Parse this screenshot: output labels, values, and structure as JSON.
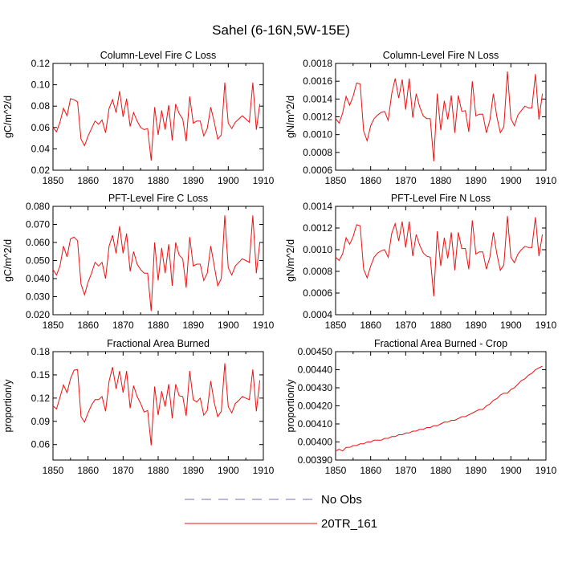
{
  "figure_title": "Sahel (6-16N,5W-15E)",
  "legend": [
    {
      "label": "No Obs",
      "color": "#7b6fb0",
      "style": "dashed"
    },
    {
      "label": "20TR_161",
      "color": "#ee1111",
      "style": "solid"
    }
  ],
  "chart_data": [
    {
      "type": "line",
      "title": "Column-Level Fire C Loss",
      "ylabel": "gC/m^2/d",
      "xlim": [
        1850,
        1910
      ],
      "ylim": [
        0.02,
        0.12
      ],
      "xticks": [
        1850,
        1860,
        1870,
        1880,
        1890,
        1900,
        1910
      ],
      "xticklabels": [
        "1850",
        "1860",
        "1870",
        "1880",
        "1890",
        "1900",
        "1910"
      ],
      "yticks": [
        0.02,
        0.04,
        0.06,
        0.08,
        0.1,
        0.12
      ],
      "yticklabels": [
        "0.02",
        "0.04",
        "0.06",
        "0.08",
        "0.10",
        "0.12"
      ],
      "series": [
        {
          "name": "20TR_161",
          "x_start": 1850,
          "values": [
            0.06,
            0.056,
            0.065,
            0.078,
            0.071,
            0.087,
            0.086,
            0.084,
            0.049,
            0.043,
            0.052,
            0.059,
            0.066,
            0.063,
            0.067,
            0.055,
            0.078,
            0.086,
            0.074,
            0.094,
            0.07,
            0.087,
            0.061,
            0.074,
            0.066,
            0.06,
            0.058,
            0.059,
            0.029,
            0.079,
            0.053,
            0.076,
            0.058,
            0.081,
            0.048,
            0.082,
            0.073,
            0.068,
            0.047,
            0.089,
            0.064,
            0.066,
            0.066,
            0.052,
            0.059,
            0.079,
            0.065,
            0.049,
            0.053,
            0.102,
            0.064,
            0.059,
            0.065,
            0.068,
            0.071,
            0.068,
            0.065,
            0.102,
            0.058,
            0.082
          ]
        }
      ]
    },
    {
      "type": "line",
      "title": "Column-Level Fire N Loss",
      "ylabel": "gN/m^2/d",
      "xlim": [
        1850,
        1910
      ],
      "ylim": [
        0.0006,
        0.0018
      ],
      "xticks": [
        1850,
        1860,
        1870,
        1880,
        1890,
        1900,
        1910
      ],
      "xticklabels": [
        "1850",
        "1860",
        "1870",
        "1880",
        "1890",
        "1900",
        "1910"
      ],
      "yticks": [
        0.0006,
        0.0008,
        0.001,
        0.0012,
        0.0014,
        0.0016,
        0.0018
      ],
      "yticklabels": [
        "0.0006",
        "0.0008",
        "0.0010",
        "0.0012",
        "0.0014",
        "0.0016",
        "0.0018"
      ],
      "series": [
        {
          "name": "20TR_161",
          "x_start": 1850,
          "values": [
            0.00118,
            0.00113,
            0.00124,
            0.00143,
            0.00133,
            0.00143,
            0.00158,
            0.00157,
            0.00104,
            0.00093,
            0.0011,
            0.00118,
            0.00122,
            0.00125,
            0.00126,
            0.00116,
            0.00146,
            0.00163,
            0.00141,
            0.00162,
            0.00128,
            0.00163,
            0.00119,
            0.00146,
            0.00131,
            0.00121,
            0.00118,
            0.00118,
            0.0007,
            0.00146,
            0.00105,
            0.00138,
            0.00117,
            0.00144,
            0.00102,
            0.00144,
            0.00126,
            0.00127,
            0.00103,
            0.0016,
            0.00121,
            0.00123,
            0.00123,
            0.00102,
            0.00116,
            0.00146,
            0.0012,
            0.00102,
            0.00109,
            0.00171,
            0.00118,
            0.0011,
            0.00122,
            0.00127,
            0.00132,
            0.0013,
            0.0013,
            0.00168,
            0.00117,
            0.00146
          ]
        }
      ]
    },
    {
      "type": "line",
      "title": "PFT-Level Fire C Loss",
      "ylabel": "gC/m^2/d",
      "xlim": [
        1850,
        1910
      ],
      "ylim": [
        0.02,
        0.08
      ],
      "xticks": [
        1850,
        1860,
        1870,
        1880,
        1890,
        1900,
        1910
      ],
      "xticklabels": [
        "1850",
        "1860",
        "1870",
        "1880",
        "1890",
        "1900",
        "1910"
      ],
      "yticks": [
        0.02,
        0.03,
        0.04,
        0.05,
        0.06,
        0.07,
        0.08
      ],
      "yticklabels": [
        "0.020",
        "0.030",
        "0.040",
        "0.050",
        "0.060",
        "0.070",
        "0.080"
      ],
      "series": [
        {
          "name": "20TR_161",
          "x_start": 1850,
          "values": [
            0.045,
            0.042,
            0.047,
            0.058,
            0.052,
            0.062,
            0.063,
            0.061,
            0.037,
            0.031,
            0.038,
            0.043,
            0.049,
            0.047,
            0.049,
            0.04,
            0.058,
            0.064,
            0.054,
            0.069,
            0.054,
            0.065,
            0.044,
            0.055,
            0.048,
            0.045,
            0.043,
            0.043,
            0.022,
            0.06,
            0.039,
            0.057,
            0.043,
            0.059,
            0.036,
            0.06,
            0.053,
            0.051,
            0.035,
            0.063,
            0.047,
            0.048,
            0.048,
            0.039,
            0.043,
            0.058,
            0.047,
            0.036,
            0.04,
            0.075,
            0.046,
            0.042,
            0.047,
            0.049,
            0.051,
            0.05,
            0.049,
            0.075,
            0.043,
            0.06
          ]
        }
      ]
    },
    {
      "type": "line",
      "title": "PFT-Level Fire N Loss",
      "ylabel": "gN/m^2/d",
      "xlim": [
        1850,
        1910
      ],
      "ylim": [
        0.0004,
        0.0014
      ],
      "xticks": [
        1850,
        1860,
        1870,
        1880,
        1890,
        1900,
        1910
      ],
      "xticklabels": [
        "1850",
        "1860",
        "1870",
        "1880",
        "1890",
        "1900",
        "1910"
      ],
      "yticks": [
        0.0004,
        0.0006,
        0.0008,
        0.001,
        0.0012,
        0.0014
      ],
      "yticklabels": [
        "0.0004",
        "0.0006",
        "0.0008",
        "0.0010",
        "0.0012",
        "0.0014"
      ],
      "series": [
        {
          "name": "20TR_161",
          "x_start": 1850,
          "values": [
            0.00093,
            0.0009,
            0.00096,
            0.00111,
            0.00105,
            0.00112,
            0.00123,
            0.00122,
            0.00082,
            0.00074,
            0.00085,
            0.00093,
            0.00097,
            0.00099,
            0.001,
            0.00093,
            0.00115,
            0.00124,
            0.00108,
            0.00126,
            0.00102,
            0.00126,
            0.00094,
            0.00114,
            0.00104,
            0.00097,
            0.00094,
            0.00093,
            0.00057,
            0.00117,
            0.00085,
            0.00111,
            0.00092,
            0.00116,
            0.00081,
            0.00116,
            0.00101,
            0.00101,
            0.00082,
            0.00127,
            0.00096,
            0.00098,
            0.00098,
            0.00082,
            0.00093,
            0.00116,
            0.00096,
            0.00081,
            0.00086,
            0.00131,
            0.00093,
            0.00088,
            0.00096,
            0.001,
            0.00103,
            0.00102,
            0.00102,
            0.0013,
            0.00094,
            0.00114
          ]
        }
      ]
    },
    {
      "type": "line",
      "title": "Fractional Area Burned",
      "ylabel": "proportion/y",
      "xlim": [
        1850,
        1910
      ],
      "ylim": [
        0.04,
        0.18
      ],
      "xticks": [
        1850,
        1860,
        1870,
        1880,
        1890,
        1900,
        1910
      ],
      "xticklabels": [
        "1850",
        "1860",
        "1870",
        "1880",
        "1890",
        "1900",
        "1910"
      ],
      "yticks": [
        0.06,
        0.09,
        0.12,
        0.15,
        0.18
      ],
      "yticklabels": [
        "0.06",
        "0.09",
        "0.12",
        "0.15",
        "0.18"
      ],
      "series": [
        {
          "name": "20TR_161",
          "x_start": 1850,
          "values": [
            0.11,
            0.106,
            0.121,
            0.137,
            0.127,
            0.145,
            0.156,
            0.157,
            0.096,
            0.089,
            0.101,
            0.111,
            0.118,
            0.118,
            0.122,
            0.103,
            0.142,
            0.16,
            0.132,
            0.155,
            0.127,
            0.155,
            0.107,
            0.136,
            0.122,
            0.113,
            0.102,
            0.104,
            0.059,
            0.135,
            0.098,
            0.129,
            0.109,
            0.138,
            0.094,
            0.138,
            0.123,
            0.122,
            0.097,
            0.155,
            0.118,
            0.115,
            0.12,
            0.098,
            0.104,
            0.142,
            0.114,
            0.096,
            0.103,
            0.165,
            0.109,
            0.101,
            0.113,
            0.117,
            0.122,
            0.12,
            0.118,
            0.157,
            0.103,
            0.143
          ]
        }
      ]
    },
    {
      "type": "line",
      "title": "Fractional Area Burned - Crop",
      "ylabel": "proportion/y",
      "xlim": [
        1850,
        1910
      ],
      "ylim": [
        0.0039,
        0.0045
      ],
      "xticks": [
        1850,
        1860,
        1870,
        1880,
        1890,
        1900,
        1910
      ],
      "xticklabels": [
        "1850",
        "1860",
        "1870",
        "1880",
        "1890",
        "1900",
        "1910"
      ],
      "yticks": [
        0.0039,
        0.004,
        0.0041,
        0.0042,
        0.0043,
        0.0044,
        0.0045
      ],
      "yticklabels": [
        "0.00390",
        "0.00400",
        "0.00410",
        "0.00420",
        "0.00430",
        "0.00440",
        "0.00450"
      ],
      "series": [
        {
          "name": "20TR_161",
          "x_start": 1850,
          "values": [
            0.00395,
            0.00396,
            0.00395,
            0.00397,
            0.00397,
            0.00398,
            0.00398,
            0.00399,
            0.00399,
            0.004,
            0.004,
            0.00401,
            0.00401,
            0.00401,
            0.00402,
            0.00402,
            0.00403,
            0.00403,
            0.00404,
            0.00404,
            0.00405,
            0.00405,
            0.00406,
            0.00406,
            0.00407,
            0.00407,
            0.00408,
            0.00408,
            0.00409,
            0.00409,
            0.0041,
            0.00411,
            0.00411,
            0.00412,
            0.00412,
            0.00413,
            0.00414,
            0.00414,
            0.00415,
            0.00416,
            0.00417,
            0.00418,
            0.00418,
            0.0042,
            0.00421,
            0.00423,
            0.00424,
            0.00426,
            0.00427,
            0.00427,
            0.00429,
            0.0043,
            0.00432,
            0.00434,
            0.00435,
            0.00437,
            0.00438,
            0.0044,
            0.00441,
            0.00442
          ]
        }
      ]
    }
  ]
}
